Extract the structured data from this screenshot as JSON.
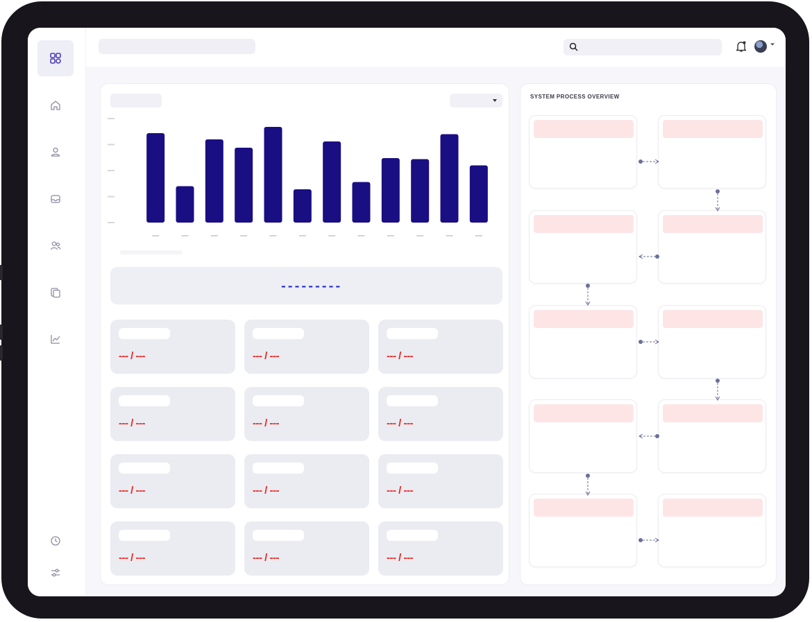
{
  "sidebar": {
    "logo": "app-logo-icon",
    "items": [
      {
        "icon": "home-icon",
        "name": "sidebar-item-home"
      },
      {
        "icon": "user-icon",
        "name": "sidebar-item-profile"
      },
      {
        "icon": "inbox-icon",
        "name": "sidebar-item-inbox"
      },
      {
        "icon": "users-icon",
        "name": "sidebar-item-team"
      },
      {
        "icon": "documents-icon",
        "name": "sidebar-item-documents"
      },
      {
        "icon": "analytics-icon",
        "name": "sidebar-item-analytics"
      }
    ],
    "bottom_items": [
      {
        "icon": "clock-icon",
        "name": "sidebar-item-history"
      },
      {
        "icon": "sliders-icon",
        "name": "sidebar-item-settings"
      }
    ]
  },
  "header": {
    "search_icon": "search-icon",
    "bell_icon": "bell-icon"
  },
  "colors": {
    "bar": "#1a0e83",
    "accent_red": "#e8261e",
    "banner_dash": "#2530c6",
    "process_header": "#fde5e6",
    "connector": "#6b6f9a"
  },
  "banner": {
    "value": "---------"
  },
  "stats": [
    {
      "value": "--- / ---"
    },
    {
      "value": "--- / ---"
    },
    {
      "value": "--- / ---"
    },
    {
      "value": "--- / ---"
    },
    {
      "value": "--- / ---"
    },
    {
      "value": "--- / ---"
    },
    {
      "value": "--- / ---"
    },
    {
      "value": "--- / ---"
    },
    {
      "value": "--- / ---"
    },
    {
      "value": "--- / ---"
    },
    {
      "value": "--- / ---"
    },
    {
      "value": "--- / ---"
    }
  ],
  "process": {
    "title": "SYSTEM PROCESS OVERVIEW",
    "steps": 10
  },
  "chart_data": {
    "type": "bar",
    "categories": [
      "",
      "",
      "",
      "",
      "",
      "",
      "",
      "",
      "",
      "",
      "",
      ""
    ],
    "values": [
      86,
      35,
      80,
      72,
      92,
      32,
      78,
      39,
      62,
      61,
      85,
      55
    ],
    "ylim": [
      0,
      100
    ],
    "grid": false,
    "title": "",
    "xlabel": "",
    "ylabel": ""
  }
}
